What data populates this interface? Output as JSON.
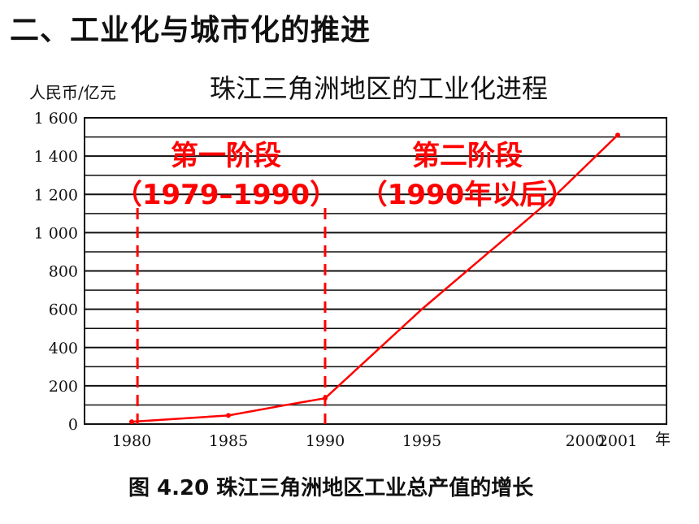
{
  "slide_title": "二、工业化与城市化的推进",
  "chart_data": {
    "type": "line",
    "title": "珠江三角洲地区的工业化进程",
    "ylabel": "人民币/亿元",
    "xunit": "年",
    "caption": "图 4.20   珠江三角洲地区工业总产值的增长",
    "x": [
      1980,
      1985,
      1988,
      1990,
      1995,
      1999,
      2001
    ],
    "y": [
      12,
      45,
      100,
      135,
      600,
      1180,
      1510
    ],
    "x_ticks": [
      1980,
      1985,
      1990,
      1995,
      2000,
      2001
    ],
    "x_tick_labels": [
      "1980",
      "1985",
      "1990",
      "1995",
      "2000",
      "2001"
    ],
    "y_ticks": [
      0,
      200,
      400,
      600,
      800,
      1000,
      1200,
      1400,
      1600
    ],
    "y_tick_labels": [
      "0",
      "200",
      "400",
      "600",
      "800",
      "1 000",
      "1 200",
      "1 400",
      "1 600"
    ],
    "ylim": [
      0,
      1600
    ],
    "grid": true,
    "line_color": "#ff0000",
    "phases": [
      {
        "label": "第一阶段",
        "range": "（1979–1990）",
        "start": 1980.3,
        "end": 1990
      },
      {
        "label": "第二阶段",
        "range": "（1990年以后）"
      }
    ]
  }
}
